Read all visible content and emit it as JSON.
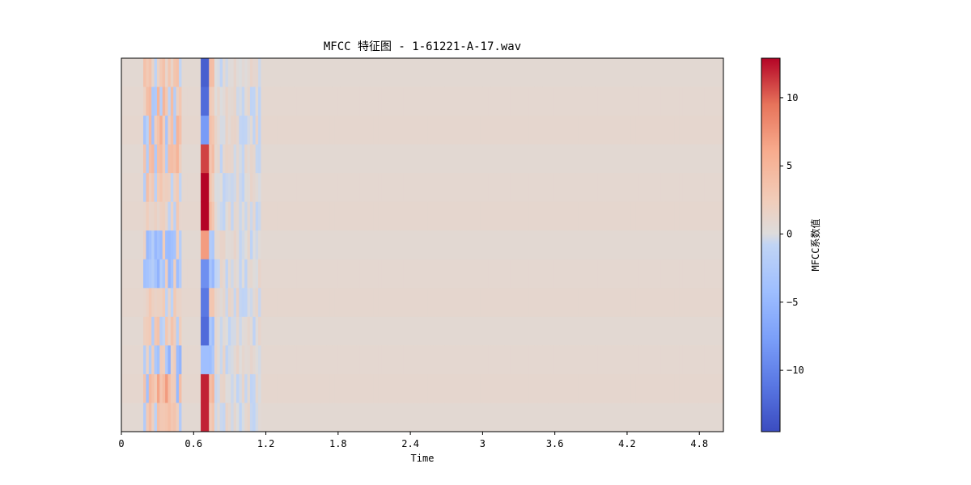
{
  "chart_data": {
    "type": "heatmap",
    "title": "MFCC 特征图 - 1-61221-A-17.wav",
    "xlabel": "Time",
    "ylabel": "",
    "x_ticks": [
      "0",
      "0.6",
      "1.2",
      "1.8",
      "2.4",
      "3",
      "3.6",
      "4.2",
      "4.8"
    ],
    "x_tick_values": [
      0,
      0.6,
      1.2,
      1.8,
      2.4,
      3,
      3.6,
      4.2,
      4.8
    ],
    "xlim": [
      0,
      5.0
    ],
    "n_coefficients": 13,
    "colormap": "coolwarm",
    "colorbar": {
      "label": "MFCC系数值",
      "ticks": [
        "10",
        "5",
        "0",
        "−5",
        "−10"
      ],
      "tick_values": [
        10,
        5,
        0,
        -5,
        -10
      ],
      "vmin": -14.5,
      "vmax": 12.9
    },
    "grid": false,
    "note_values": "Energy concentrated between 0.2s and 0.75s; strong spike near 0.69s; rest near 0."
  }
}
